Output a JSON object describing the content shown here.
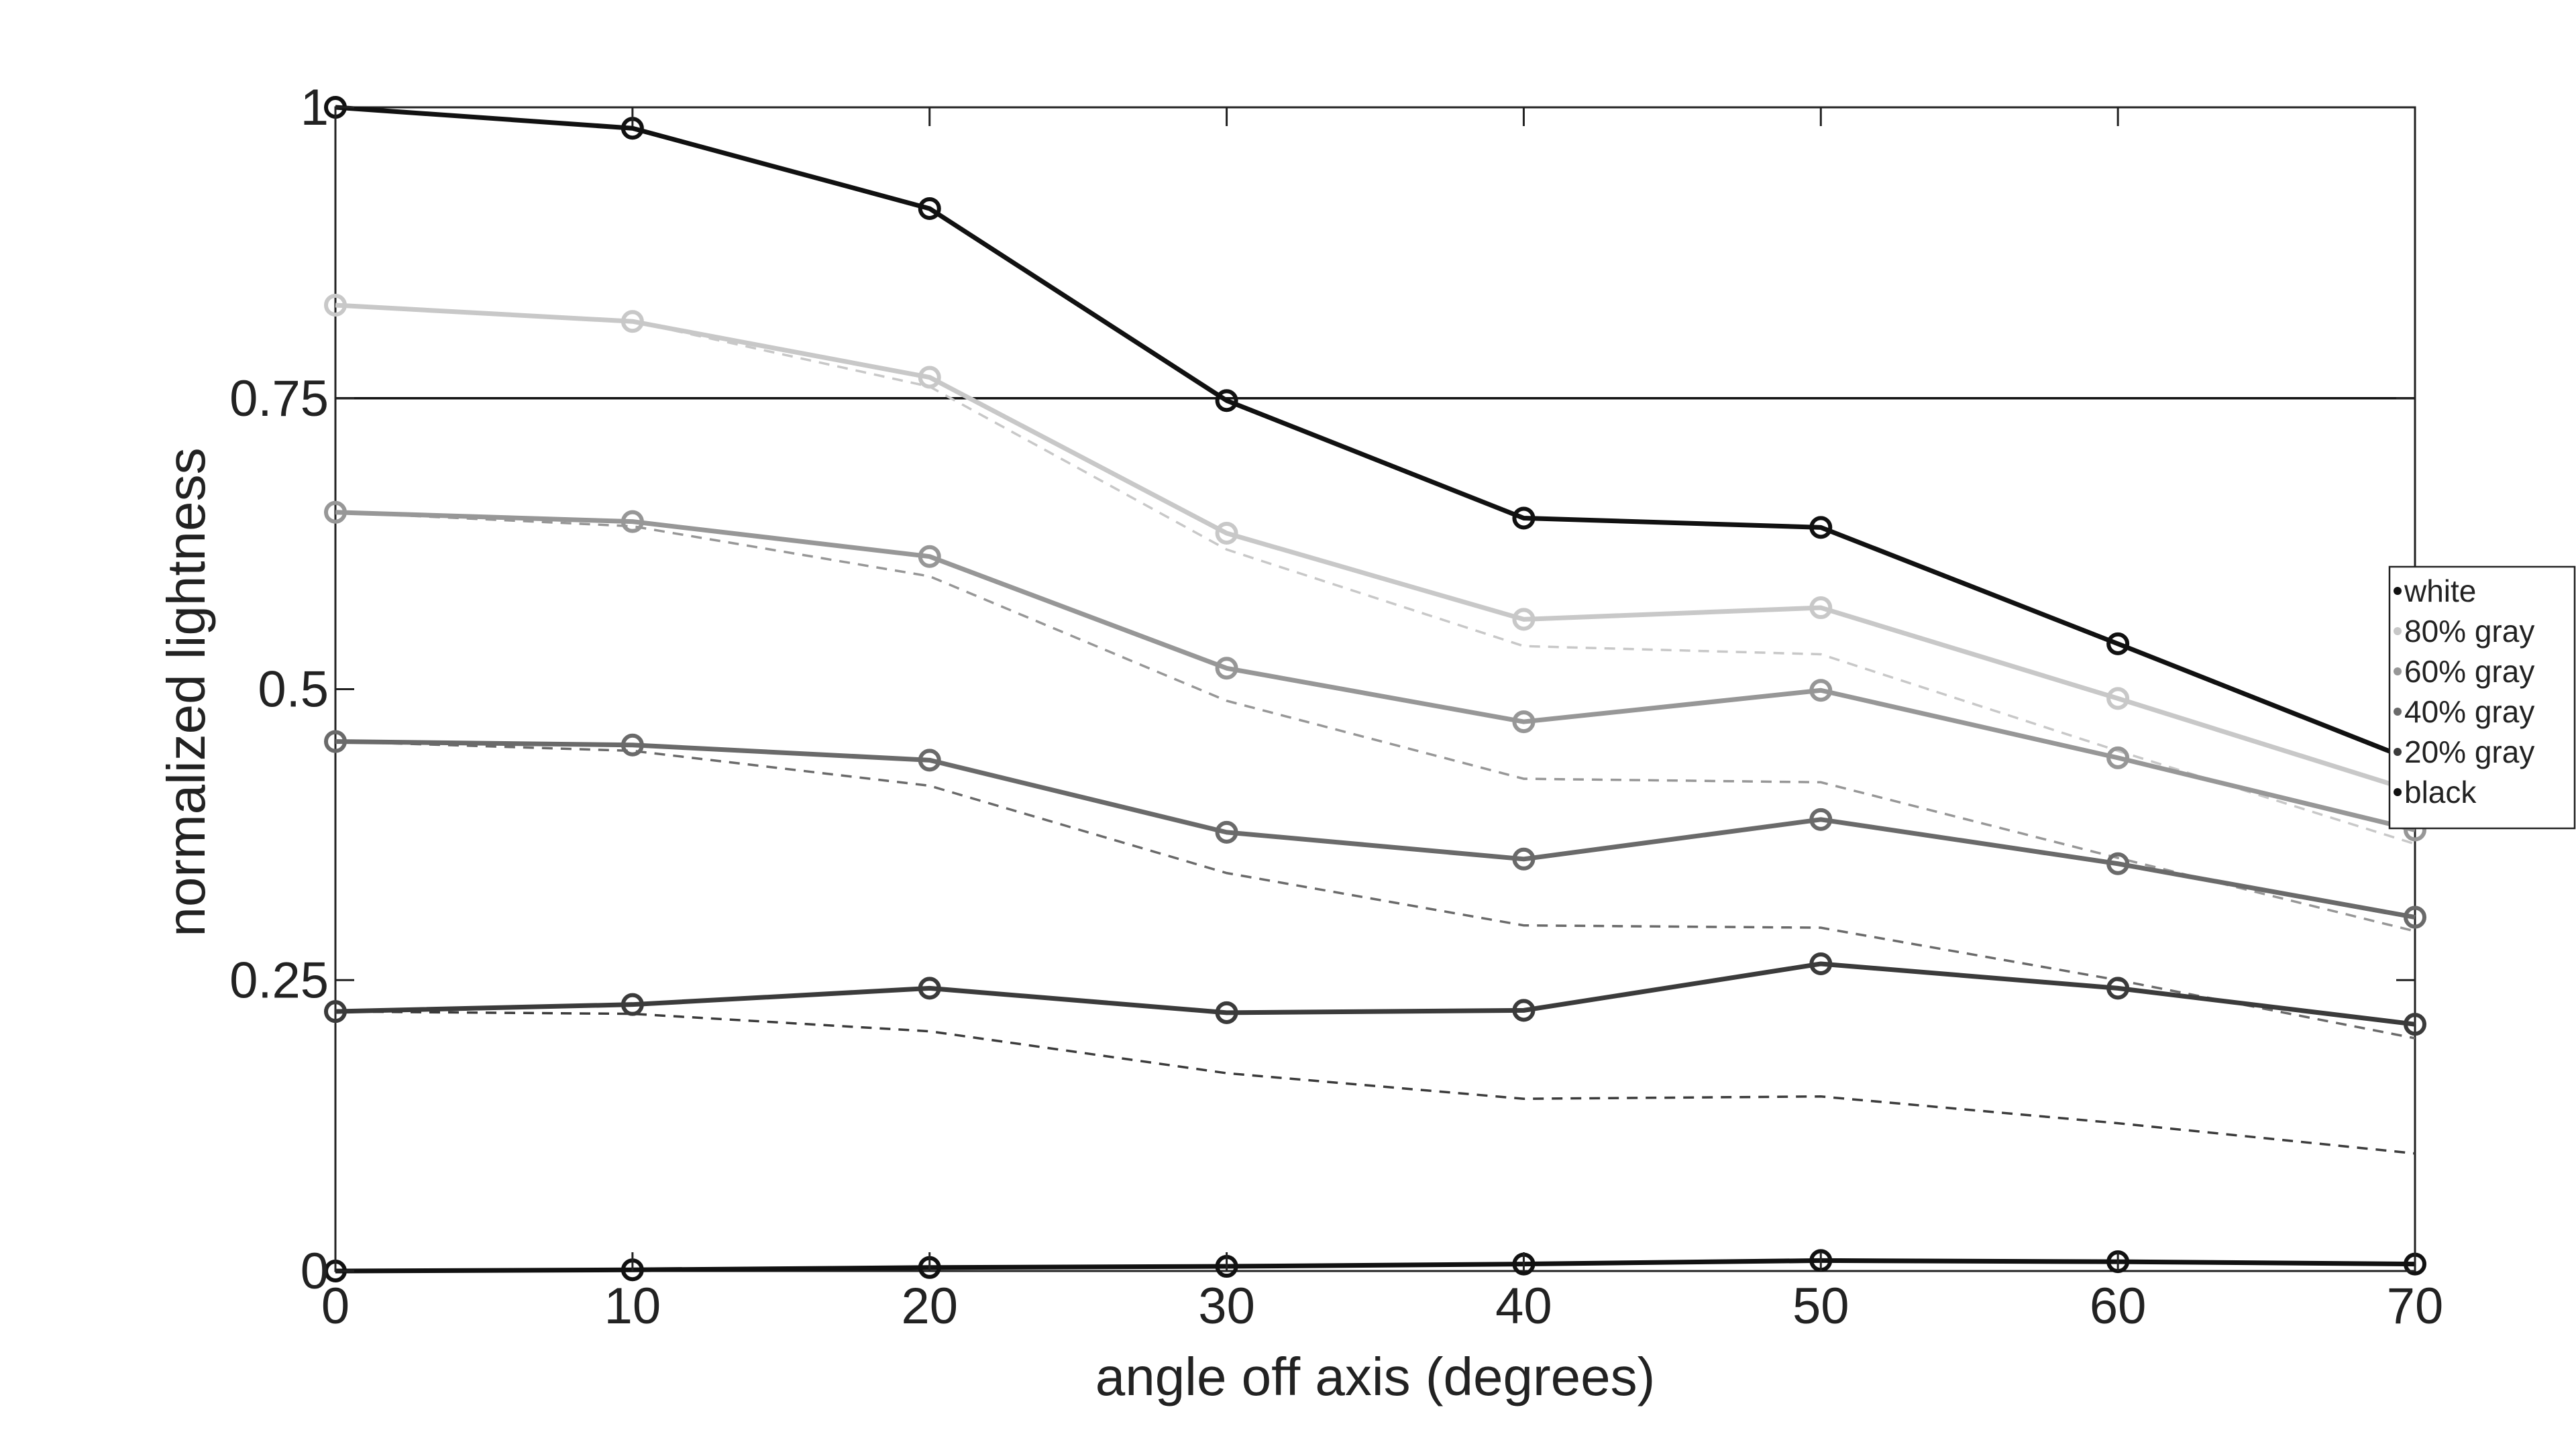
{
  "chart_data": {
    "type": "line",
    "xlabel": "angle off axis (degrees)",
    "ylabel": "normalized lightness",
    "xlim": [
      0,
      70
    ],
    "ylim": [
      0,
      1
    ],
    "x_ticks": [
      0,
      10,
      20,
      30,
      40,
      50,
      60,
      70
    ],
    "x_tick_labels": [
      "0",
      "10",
      "20",
      "30",
      "40",
      "50",
      "60",
      "70"
    ],
    "y_ticks": [
      0,
      0.25,
      0.5,
      0.75,
      1
    ],
    "y_tick_labels": [
      "0",
      "0.25",
      "0.5",
      "0.75",
      "1"
    ],
    "reference_line": {
      "y": 0.75
    },
    "legend_position": "right",
    "x": [
      0,
      10,
      20,
      30,
      40,
      50,
      60,
      70
    ],
    "series": [
      {
        "name": "white",
        "color": "#111111",
        "values": [
          1.0,
          0.982,
          0.913,
          0.748,
          0.647,
          0.639,
          0.539,
          0.438
        ]
      },
      {
        "name": "80% gray",
        "color": "#c8c8c8",
        "values": [
          0.83,
          0.816,
          0.768,
          0.634,
          0.56,
          0.57,
          0.492,
          0.412
        ],
        "dashed_values": [
          0.83,
          0.816,
          0.76,
          0.62,
          0.537,
          0.53,
          0.447,
          0.367
        ]
      },
      {
        "name": "60% gray",
        "color": "#979797",
        "values": [
          0.652,
          0.644,
          0.614,
          0.518,
          0.472,
          0.499,
          0.441,
          0.379
        ],
        "dashed_values": [
          0.652,
          0.64,
          0.597,
          0.49,
          0.423,
          0.42,
          0.355,
          0.292
        ]
      },
      {
        "name": "40% gray",
        "color": "#6a6a6a",
        "values": [
          0.455,
          0.452,
          0.439,
          0.377,
          0.354,
          0.388,
          0.35,
          0.304
        ],
        "dashed_values": [
          0.455,
          0.447,
          0.417,
          0.342,
          0.297,
          0.295,
          0.25,
          0.2
        ]
      },
      {
        "name": "20% gray",
        "color": "#3b3b3b",
        "values": [
          0.223,
          0.229,
          0.243,
          0.222,
          0.224,
          0.264,
          0.243,
          0.212
        ],
        "dashed_values": [
          0.223,
          0.221,
          0.206,
          0.17,
          0.148,
          0.15,
          0.127,
          0.101
        ]
      },
      {
        "name": "black",
        "color": "#111111",
        "values": [
          0.0,
          0.001,
          0.003,
          0.004,
          0.006,
          0.009,
          0.008,
          0.006
        ]
      }
    ]
  }
}
